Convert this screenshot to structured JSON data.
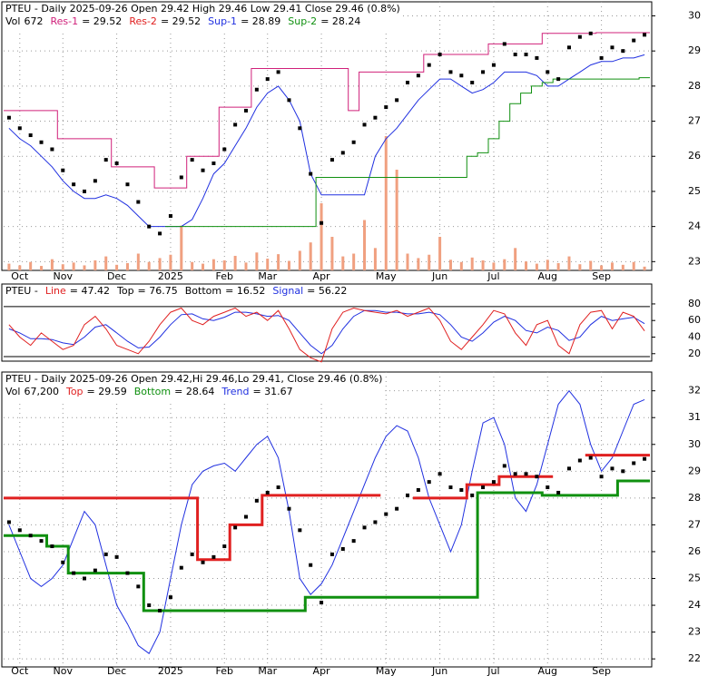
{
  "chart_data": [
    {
      "type": "stock",
      "title": "PTEU - Daily 2025-09-26 Open 29.42  High 29.46  Low 29.41  Close 29.46 (0.8%)",
      "legend": [
        {
          "name": "Vol",
          "value": 672,
          "label": "672",
          "color": "#000000"
        },
        {
          "name": "Res-1",
          "value": 29.52,
          "label": "= 29.52",
          "color": "#d0207a"
        },
        {
          "name": "Res-2",
          "value": 29.52,
          "label": "= 29.52",
          "color": "#e02020"
        },
        {
          "name": "Sup-1",
          "value": 28.89,
          "label": "= 28.89",
          "color": "#2030e0"
        },
        {
          "name": "Sup-2",
          "value": 28.24,
          "label": "= 28.24",
          "color": "#109010"
        }
      ],
      "categories": [
        null,
        "Oct",
        null,
        null,
        null,
        "Nov",
        null,
        null,
        null,
        null,
        "Dec",
        null,
        null,
        null,
        null,
        "2025",
        null,
        null,
        null,
        null,
        "Feb",
        null,
        null,
        null,
        "Mar",
        null,
        null,
        null,
        null,
        "Apr",
        null,
        null,
        null,
        null,
        null,
        "May",
        null,
        null,
        null,
        null,
        "Jun",
        null,
        null,
        null,
        null,
        "Jul",
        null,
        null,
        null,
        null,
        "Aug",
        null,
        null,
        null,
        null,
        "Sep",
        null,
        null,
        null,
        null
      ],
      "ylim": [
        22.75,
        30.4
      ],
      "yticks": [
        23,
        24,
        25,
        26,
        27,
        28,
        29,
        30
      ],
      "grid": true,
      "series": [
        {
          "style": "volume",
          "color": "#f0a080",
          "values": [
            1200,
            900,
            1500,
            800,
            2000,
            1100,
            1400,
            900,
            1800,
            2500,
            1000,
            1300,
            3000,
            1500,
            2200,
            2800,
            8000,
            1500,
            1200,
            2000,
            1800,
            2600,
            1400,
            3200,
            2100,
            2900,
            1700,
            3500,
            5000,
            12000,
            6000,
            2500,
            3000,
            9000,
            4000,
            24000,
            18000,
            3000,
            2200,
            2800,
            6000,
            1900,
            1500,
            2300,
            1800,
            1400,
            2000,
            4000,
            1600,
            1200,
            1900,
            1300,
            2500,
            1100,
            1700,
            900,
            1400,
            1000,
            1500,
            672
          ]
        },
        {
          "style": "step",
          "color": "#d0207a",
          "values": [
            27.3,
            27.3,
            27.3,
            27.3,
            27.3,
            26.5,
            26.5,
            26.5,
            26.5,
            26.5,
            25.7,
            25.7,
            25.7,
            25.7,
            25.1,
            25.1,
            25.1,
            26.0,
            26.0,
            26.0,
            27.4,
            27.4,
            27.4,
            28.5,
            28.5,
            28.5,
            28.5,
            28.5,
            28.5,
            28.5,
            28.5,
            28.5,
            27.3,
            28.4,
            28.4,
            28.4,
            28.4,
            28.4,
            28.4,
            28.9,
            28.9,
            28.9,
            28.9,
            28.9,
            28.9,
            29.2,
            29.2,
            29.2,
            29.2,
            29.2,
            29.5,
            29.5,
            29.5,
            29.5,
            29.5,
            29.52,
            29.52,
            29.52,
            29.52,
            29.52
          ]
        },
        {
          "style": "line",
          "color": "#2030e0",
          "values": [
            26.8,
            26.5,
            26.3,
            26.0,
            25.7,
            25.3,
            25.0,
            24.8,
            24.8,
            24.9,
            24.8,
            24.6,
            24.3,
            24.0,
            24.0,
            24.0,
            24.0,
            24.2,
            24.8,
            25.5,
            25.8,
            26.3,
            26.8,
            27.4,
            27.8,
            28.0,
            27.6,
            27.0,
            25.5,
            24.9,
            24.9,
            24.9,
            24.9,
            24.9,
            26.0,
            26.5,
            26.8,
            27.2,
            27.6,
            27.9,
            28.2,
            28.2,
            28.0,
            27.8,
            27.9,
            28.1,
            28.4,
            28.4,
            28.4,
            28.3,
            28.0,
            28.0,
            28.2,
            28.4,
            28.6,
            28.7,
            28.7,
            28.8,
            28.8,
            28.89
          ]
        },
        {
          "style": "step",
          "color": "#109010",
          "values": [
            null,
            null,
            null,
            null,
            null,
            null,
            null,
            null,
            null,
            null,
            null,
            null,
            null,
            null,
            null,
            24.0,
            24.0,
            24.0,
            24.0,
            24.0,
            24.0,
            24.0,
            24.0,
            24.0,
            24.0,
            24.0,
            24.0,
            24.0,
            24.0,
            25.4,
            25.4,
            25.4,
            25.4,
            25.4,
            25.4,
            25.4,
            25.4,
            25.4,
            25.4,
            25.4,
            25.4,
            25.4,
            25.4,
            26.0,
            26.1,
            26.5,
            27.0,
            27.5,
            27.8,
            28.0,
            28.1,
            28.2,
            28.2,
            28.2,
            28.2,
            28.2,
            28.2,
            28.2,
            28.2,
            28.24
          ]
        },
        {
          "style": "tick",
          "color": "#000000",
          "values": [
            27.1,
            26.8,
            26.6,
            26.4,
            26.2,
            25.6,
            25.2,
            25.0,
            25.3,
            25.9,
            25.8,
            25.2,
            24.7,
            24.0,
            23.8,
            24.3,
            25.4,
            25.9,
            25.6,
            25.8,
            26.2,
            26.9,
            27.3,
            27.9,
            28.2,
            28.4,
            27.6,
            26.8,
            25.5,
            24.1,
            25.9,
            26.1,
            26.4,
            26.9,
            27.1,
            27.4,
            27.6,
            28.1,
            28.3,
            28.6,
            28.9,
            28.4,
            28.3,
            28.1,
            28.4,
            28.6,
            29.2,
            28.9,
            28.9,
            28.8,
            28.4,
            28.2,
            29.1,
            29.4,
            29.5,
            28.8,
            29.1,
            29.0,
            29.3,
            29.46
          ]
        }
      ]
    },
    {
      "type": "oscillator",
      "title": "PTEU -",
      "legend": [
        {
          "name": "Line",
          "value": 47.42,
          "label": "= 47.42",
          "color": "#e02020"
        },
        {
          "name": "Top",
          "value": 76.75,
          "label": "= 76.75",
          "color": "#000000",
          "hline": true
        },
        {
          "name": "Bottom",
          "value": 16.52,
          "label": "= 16.52",
          "color": "#000000",
          "hline": true
        },
        {
          "name": "Signal",
          "value": 56.22,
          "label": "= 56.22",
          "color": "#2030e0"
        }
      ],
      "ylim": [
        11,
        104
      ],
      "yticks": [
        20,
        40,
        60,
        80
      ],
      "grid": false,
      "series": [
        {
          "style": "line",
          "color": "#2030e0",
          "values": [
            50,
            45,
            38,
            38,
            37,
            33,
            31,
            40,
            52,
            55,
            45,
            35,
            27,
            28,
            40,
            55,
            67,
            68,
            62,
            60,
            64,
            70,
            70,
            68,
            65,
            66,
            60,
            45,
            30,
            20,
            30,
            50,
            65,
            72,
            72,
            70,
            70,
            68,
            68,
            70,
            67,
            55,
            40,
            35,
            45,
            58,
            65,
            60,
            48,
            45,
            52,
            48,
            36,
            40,
            55,
            65,
            60,
            62,
            64,
            56.22
          ]
        },
        {
          "style": "line",
          "color": "#e02020",
          "values": [
            55,
            40,
            30,
            45,
            35,
            25,
            30,
            55,
            65,
            50,
            30,
            25,
            20,
            35,
            55,
            70,
            75,
            60,
            55,
            65,
            70,
            75,
            65,
            70,
            60,
            72,
            50,
            25,
            15,
            10,
            50,
            70,
            75,
            72,
            70,
            68,
            72,
            65,
            70,
            75,
            60,
            35,
            25,
            40,
            55,
            72,
            68,
            45,
            30,
            55,
            60,
            30,
            20,
            55,
            70,
            72,
            50,
            70,
            65,
            47.42
          ]
        }
      ]
    },
    {
      "type": "stock",
      "title": "PTEU - Daily 2025-09-26 Open 29.42,Hi 29.46,Lo 29.41, Close 29.46 (0.8%)",
      "legend": [
        {
          "name": "Vol",
          "value": 67200,
          "label": "67,200",
          "color": "#000000"
        },
        {
          "name": "Top",
          "value": 29.59,
          "label": "= 29.59",
          "color": "#e02020"
        },
        {
          "name": "Bottom",
          "value": 28.64,
          "label": "= 28.64",
          "color": "#109010"
        },
        {
          "name": "Trend",
          "value": 31.67,
          "label": "= 31.67",
          "color": "#2030e0"
        }
      ],
      "categories": [
        null,
        "Oct",
        null,
        null,
        null,
        "Nov",
        null,
        null,
        null,
        null,
        "Dec",
        null,
        null,
        null,
        null,
        "2025",
        null,
        null,
        null,
        null,
        "Feb",
        null,
        null,
        null,
        "Mar",
        null,
        null,
        null,
        null,
        "Apr",
        null,
        null,
        null,
        null,
        null,
        "May",
        null,
        null,
        null,
        null,
        "Jun",
        null,
        null,
        null,
        null,
        "Jul",
        null,
        null,
        null,
        null,
        "Aug",
        null,
        null,
        null,
        null,
        "Sep",
        null,
        null,
        null,
        null
      ],
      "ylim": [
        21.7,
        32.7
      ],
      "yticks": [
        22,
        23,
        24,
        25,
        26,
        27,
        28,
        29,
        30,
        31,
        32
      ],
      "grid": true,
      "series": [
        {
          "style": "line",
          "color": "#2030e0",
          "values": [
            27.0,
            26.0,
            25.0,
            24.7,
            25.0,
            25.5,
            26.5,
            27.5,
            27.0,
            25.5,
            24.0,
            23.3,
            22.5,
            22.2,
            23.0,
            25.0,
            27.0,
            28.5,
            29.0,
            29.2,
            29.3,
            29.0,
            29.5,
            30.0,
            30.3,
            29.5,
            27.5,
            25.0,
            24.4,
            24.8,
            25.5,
            26.5,
            27.5,
            28.5,
            29.5,
            30.3,
            30.7,
            30.5,
            29.5,
            28.0,
            27.0,
            26.0,
            27.0,
            29.0,
            30.8,
            31.0,
            30.0,
            28.0,
            27.5,
            28.5,
            30.0,
            31.5,
            32.0,
            31.5,
            30.0,
            29.0,
            29.5,
            30.5,
            31.5,
            31.67
          ]
        },
        {
          "style": "level",
          "color": "#e02020",
          "values": [
            28.0,
            28.0,
            28.0,
            28.0,
            28.0,
            28.0,
            28.0,
            28.0,
            28.0,
            28.0,
            28.0,
            28.0,
            28.0,
            28.0,
            28.0,
            28.0,
            28.0,
            28.0,
            25.7,
            25.7,
            25.7,
            27.0,
            27.0,
            27.0,
            28.1,
            28.1,
            28.1,
            28.1,
            28.1,
            28.1,
            28.1,
            28.1,
            28.1,
            28.1,
            28.1,
            null,
            null,
            null,
            28.0,
            28.0,
            28.0,
            28.0,
            28.0,
            28.5,
            28.5,
            28.5,
            28.8,
            28.8,
            28.8,
            28.8,
            28.8,
            null,
            null,
            null,
            29.6,
            29.6,
            29.6,
            29.6,
            29.6,
            29.6
          ]
        },
        {
          "style": "level",
          "color": "#109010",
          "values": [
            26.6,
            26.6,
            26.6,
            26.6,
            26.2,
            26.2,
            25.2,
            25.2,
            25.2,
            25.2,
            25.2,
            25.2,
            25.2,
            23.8,
            23.8,
            23.8,
            23.8,
            23.8,
            23.8,
            23.8,
            23.8,
            23.8,
            23.8,
            23.8,
            23.8,
            23.8,
            23.8,
            23.8,
            24.3,
            24.3,
            24.3,
            24.3,
            24.3,
            24.3,
            24.3,
            24.3,
            24.3,
            24.3,
            24.3,
            24.3,
            24.3,
            24.3,
            24.3,
            24.3,
            28.2,
            28.2,
            28.2,
            28.2,
            28.2,
            28.2,
            28.1,
            28.1,
            28.1,
            28.1,
            28.1,
            28.1,
            28.1,
            28.64,
            28.64,
            28.64
          ]
        },
        {
          "style": "tick",
          "color": "#000000",
          "values": [
            27.1,
            26.8,
            26.6,
            26.4,
            26.2,
            25.6,
            25.2,
            25.0,
            25.3,
            25.9,
            25.8,
            25.2,
            24.7,
            24.0,
            23.8,
            24.3,
            25.4,
            25.9,
            25.6,
            25.8,
            26.2,
            26.9,
            27.3,
            27.9,
            28.2,
            28.4,
            27.6,
            26.8,
            25.5,
            24.1,
            25.9,
            26.1,
            26.4,
            26.9,
            27.1,
            27.4,
            27.6,
            28.1,
            28.3,
            28.6,
            28.9,
            28.4,
            28.3,
            28.1,
            28.4,
            28.6,
            29.2,
            28.9,
            28.9,
            28.8,
            28.4,
            28.2,
            29.1,
            29.4,
            29.5,
            28.8,
            29.1,
            29.0,
            29.3,
            29.46
          ]
        }
      ]
    }
  ]
}
